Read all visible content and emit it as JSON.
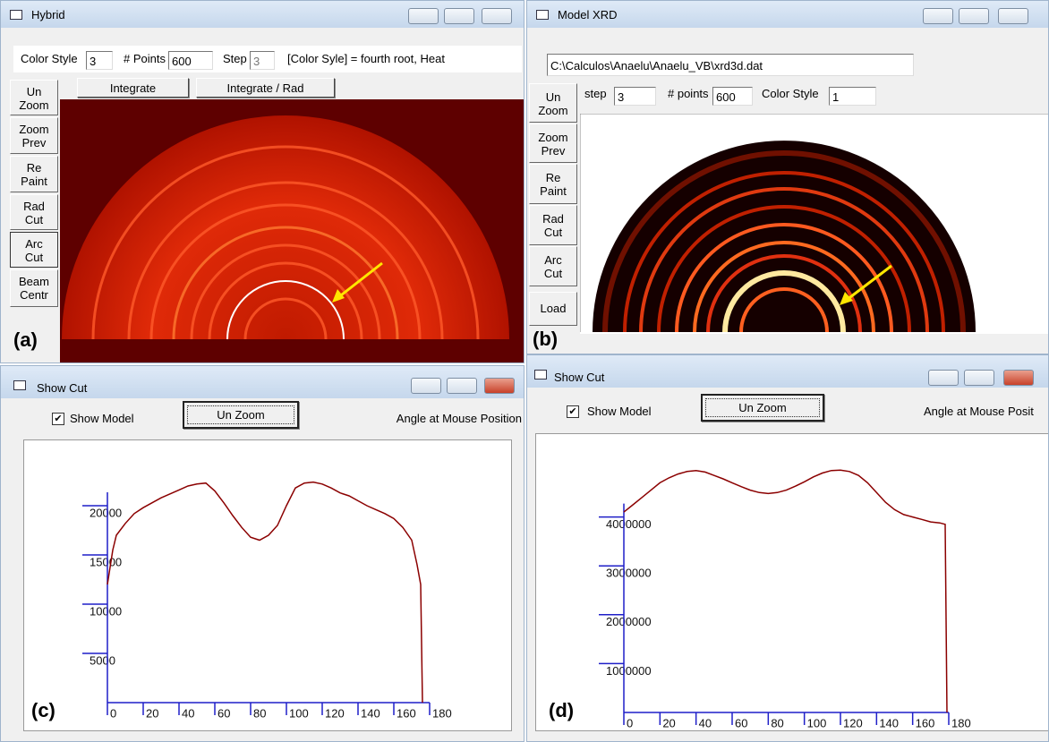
{
  "windows": [
    {
      "title": "Hybrid",
      "label": "(a)",
      "fields": [
        {
          "label": "Color Style",
          "value": "3"
        },
        {
          "label": "# Points",
          "value": "600"
        },
        {
          "label": "Step",
          "value": "3"
        }
      ],
      "note": "[Color Syle] = fourth  root, Heat",
      "buttons": [
        "Integrate",
        "Integrate / Rad"
      ],
      "side_buttons": [
        "Un Zoom",
        "Zoom Prev",
        "Re Paint",
        "Rad Cut",
        "Arc Cut",
        "Beam Centr"
      ]
    },
    {
      "title": "Model XRD",
      "label": "(b)",
      "path": "C:\\Calculos\\Anaelu\\Anaelu_VB\\xrd3d.dat",
      "fields": [
        {
          "label": "step",
          "value": "3"
        },
        {
          "label": "# points",
          "value": "600"
        },
        {
          "label": "Color Style",
          "value": "1"
        }
      ],
      "side_buttons": [
        "Un Zoom",
        "Zoom Prev",
        "Re Paint",
        "Rad Cut",
        "Arc Cut",
        "Load"
      ]
    },
    {
      "title": "Show Cut",
      "label": "(c)",
      "checkbox": "Show Model",
      "button": "Un Zoom",
      "status": "Angle at Mouse Position"
    },
    {
      "title": "Show Cut",
      "label": "(d)",
      "checkbox": "Show Model",
      "button": "Un Zoom",
      "status": "Angle at Mouse Posit"
    }
  ],
  "chart_data": [
    {
      "type": "line",
      "color": "#8b0000",
      "axis_color": "#1f1fc8",
      "x": [
        0,
        3,
        5,
        10,
        15,
        20,
        25,
        30,
        35,
        40,
        45,
        50,
        55,
        60,
        65,
        70,
        75,
        80,
        85,
        90,
        95,
        100,
        105,
        110,
        115,
        120,
        125,
        130,
        135,
        140,
        145,
        150,
        155,
        160,
        165,
        170,
        173,
        175,
        176
      ],
      "values": [
        12000,
        15500,
        17000,
        18200,
        19200,
        19800,
        20300,
        20800,
        21200,
        21600,
        22000,
        22200,
        22300,
        21500,
        20300,
        19000,
        17800,
        16800,
        16500,
        17000,
        18000,
        20000,
        21800,
        22300,
        22400,
        22200,
        21800,
        21300,
        21000,
        20500,
        20000,
        19600,
        19200,
        18700,
        17800,
        16500,
        14000,
        12000,
        0
      ],
      "xlim": [
        0,
        180
      ],
      "ylim": [
        0,
        24000
      ],
      "xticks": [
        0,
        20,
        40,
        60,
        80,
        100,
        120,
        140,
        160,
        180
      ],
      "yticks": [
        5000,
        10000,
        15000,
        20000
      ]
    },
    {
      "type": "line",
      "color": "#8b0000",
      "axis_color": "#1f1fc8",
      "x": [
        0,
        5,
        10,
        15,
        20,
        25,
        30,
        35,
        40,
        45,
        50,
        55,
        60,
        65,
        70,
        75,
        80,
        85,
        90,
        95,
        100,
        105,
        110,
        115,
        120,
        125,
        130,
        135,
        140,
        145,
        150,
        155,
        160,
        165,
        170,
        175,
        178,
        179
      ],
      "values": [
        4100000,
        4250000,
        4400000,
        4550000,
        4700000,
        4800000,
        4880000,
        4930000,
        4950000,
        4920000,
        4850000,
        4780000,
        4700000,
        4620000,
        4550000,
        4500000,
        4480000,
        4500000,
        4550000,
        4630000,
        4720000,
        4820000,
        4900000,
        4950000,
        4960000,
        4930000,
        4850000,
        4700000,
        4500000,
        4300000,
        4150000,
        4050000,
        4000000,
        3950000,
        3900000,
        3880000,
        3850000,
        0
      ],
      "xlim": [
        0,
        180
      ],
      "ylim": [
        0,
        5000000
      ],
      "xticks": [
        0,
        20,
        40,
        60,
        80,
        100,
        120,
        140,
        160,
        180
      ],
      "yticks": [
        1000000,
        2000000,
        3000000,
        4000000
      ]
    }
  ]
}
